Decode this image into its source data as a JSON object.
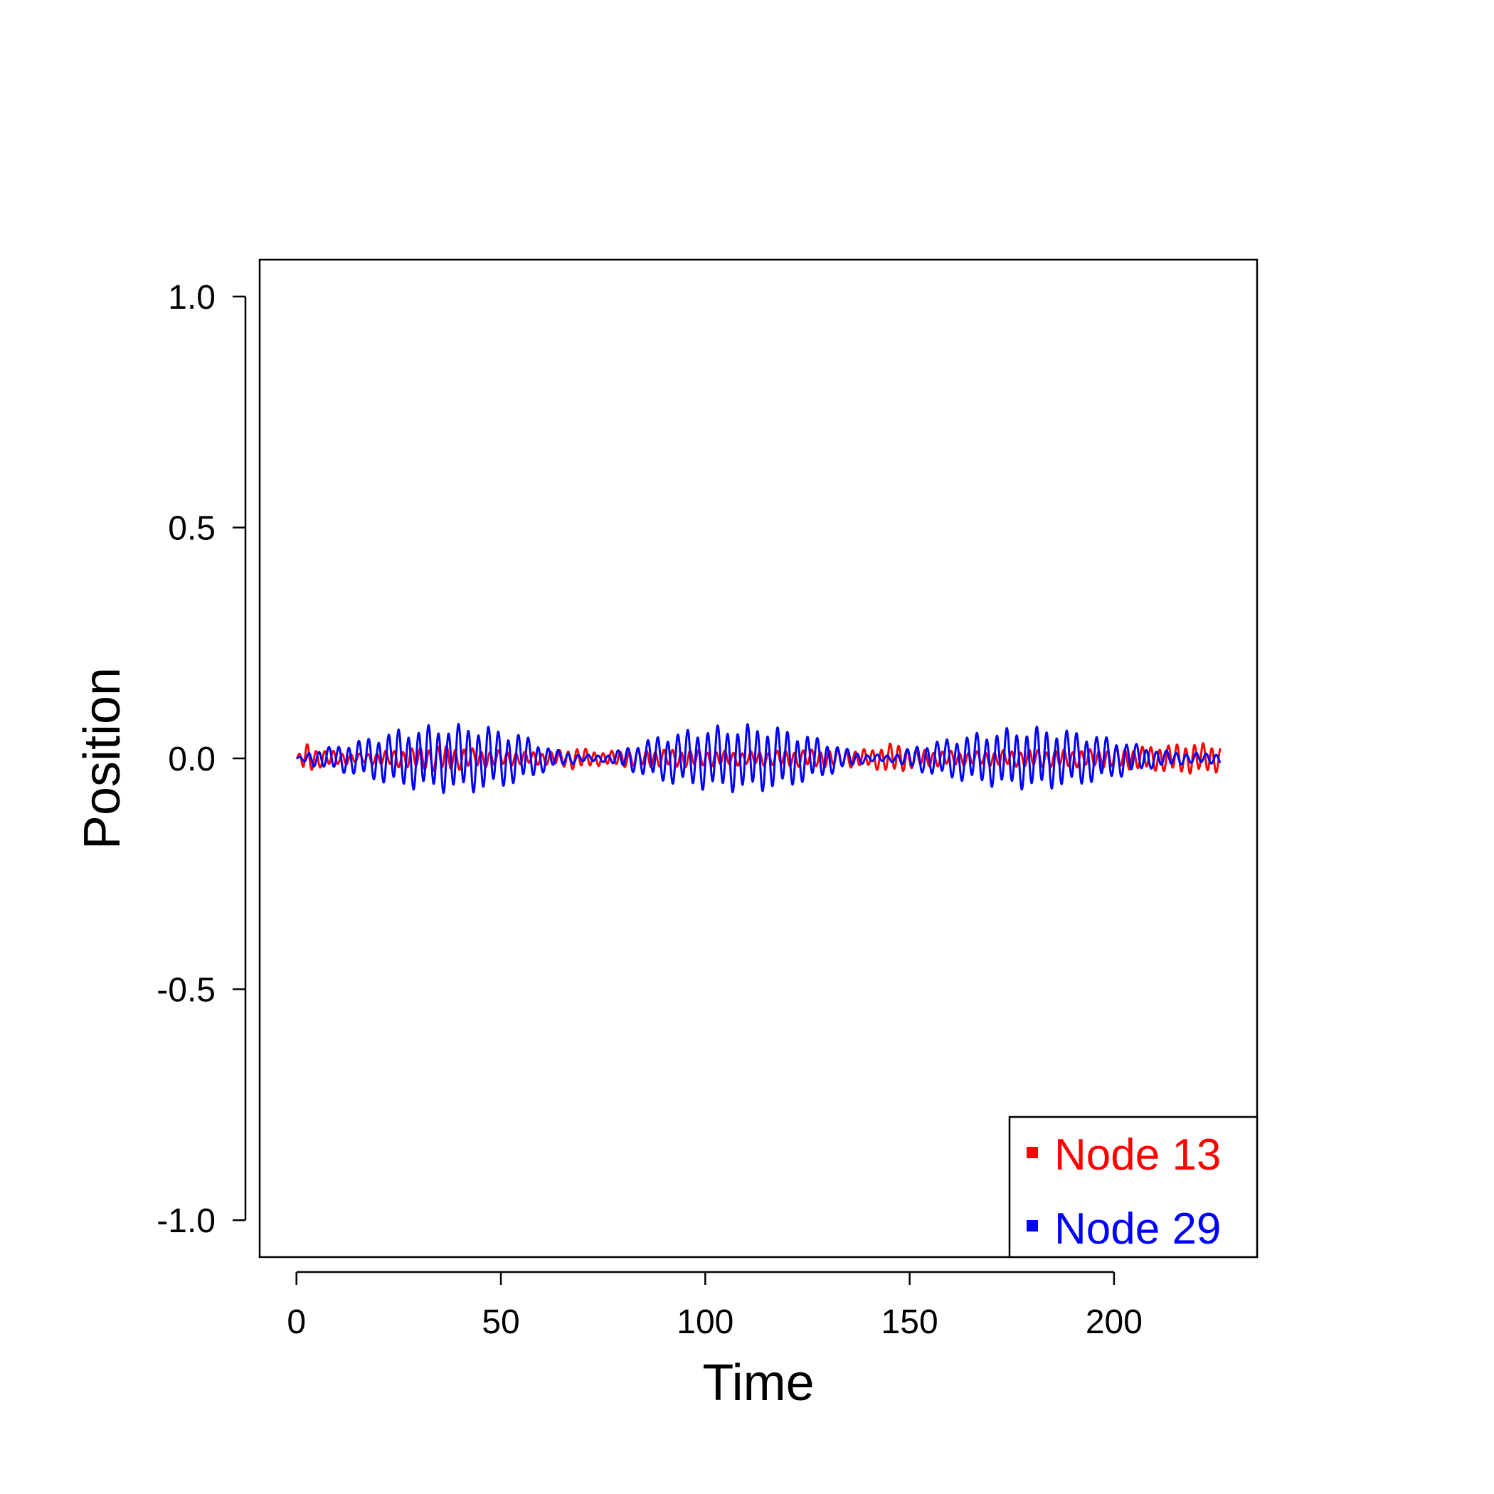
{
  "chart_data": {
    "type": "line",
    "title": "",
    "xlabel": "Time",
    "ylabel": "Position",
    "xlim": [
      -9,
      235
    ],
    "ylim": [
      -1.08,
      1.08
    ],
    "xticks": [
      0,
      50,
      100,
      150,
      200
    ],
    "xtick_labels": [
      "0",
      "50",
      "100",
      "150",
      "200"
    ],
    "yticks": [
      -1.0,
      -0.5,
      0.0,
      0.5,
      1.0
    ],
    "ytick_labels": [
      "-1.0",
      "-0.5",
      "0.0",
      "0.5",
      "1.0"
    ],
    "grid": false,
    "legend_position": "bottom-right",
    "series": [
      {
        "name": "Node 13",
        "color": "#ff0000",
        "t_start": 0,
        "t_end": 226,
        "approx_max_abs": 0.04,
        "peak_envelope": [
          [
            0,
            0.0
          ],
          [
            2,
            0.035
          ],
          [
            6,
            0.02
          ],
          [
            15,
            0.01
          ],
          [
            25,
            0.02
          ],
          [
            35,
            0.03
          ],
          [
            45,
            0.02
          ],
          [
            55,
            0.015
          ],
          [
            62,
            0.015
          ],
          [
            68,
            0.025
          ],
          [
            75,
            0.015
          ],
          [
            82,
            0.02
          ],
          [
            95,
            0.02
          ],
          [
            110,
            0.015
          ],
          [
            125,
            0.02
          ],
          [
            140,
            0.02
          ],
          [
            146,
            0.035
          ],
          [
            152,
            0.02
          ],
          [
            165,
            0.015
          ],
          [
            180,
            0.02
          ],
          [
            195,
            0.02
          ],
          [
            205,
            0.025
          ],
          [
            212,
            0.03
          ],
          [
            220,
            0.035
          ],
          [
            226,
            0.03
          ]
        ]
      },
      {
        "name": "Node 29",
        "color": "#0000ff",
        "t_start": 0,
        "t_end": 226,
        "approx_max_abs": 0.085,
        "peak_envelope": [
          [
            0,
            0.0
          ],
          [
            3,
            0.015
          ],
          [
            8,
            0.025
          ],
          [
            15,
            0.04
          ],
          [
            25,
            0.065
          ],
          [
            35,
            0.075
          ],
          [
            45,
            0.075
          ],
          [
            55,
            0.055
          ],
          [
            63,
            0.02
          ],
          [
            70,
            0.008
          ],
          [
            76,
            0.008
          ],
          [
            82,
            0.03
          ],
          [
            90,
            0.055
          ],
          [
            100,
            0.07
          ],
          [
            110,
            0.075
          ],
          [
            118,
            0.07
          ],
          [
            128,
            0.045
          ],
          [
            135,
            0.02
          ],
          [
            140,
            0.008
          ],
          [
            146,
            0.008
          ],
          [
            152,
            0.03
          ],
          [
            162,
            0.05
          ],
          [
            172,
            0.065
          ],
          [
            182,
            0.07
          ],
          [
            192,
            0.06
          ],
          [
            202,
            0.04
          ],
          [
            210,
            0.02
          ],
          [
            218,
            0.012
          ],
          [
            226,
            0.012
          ]
        ]
      }
    ]
  }
}
